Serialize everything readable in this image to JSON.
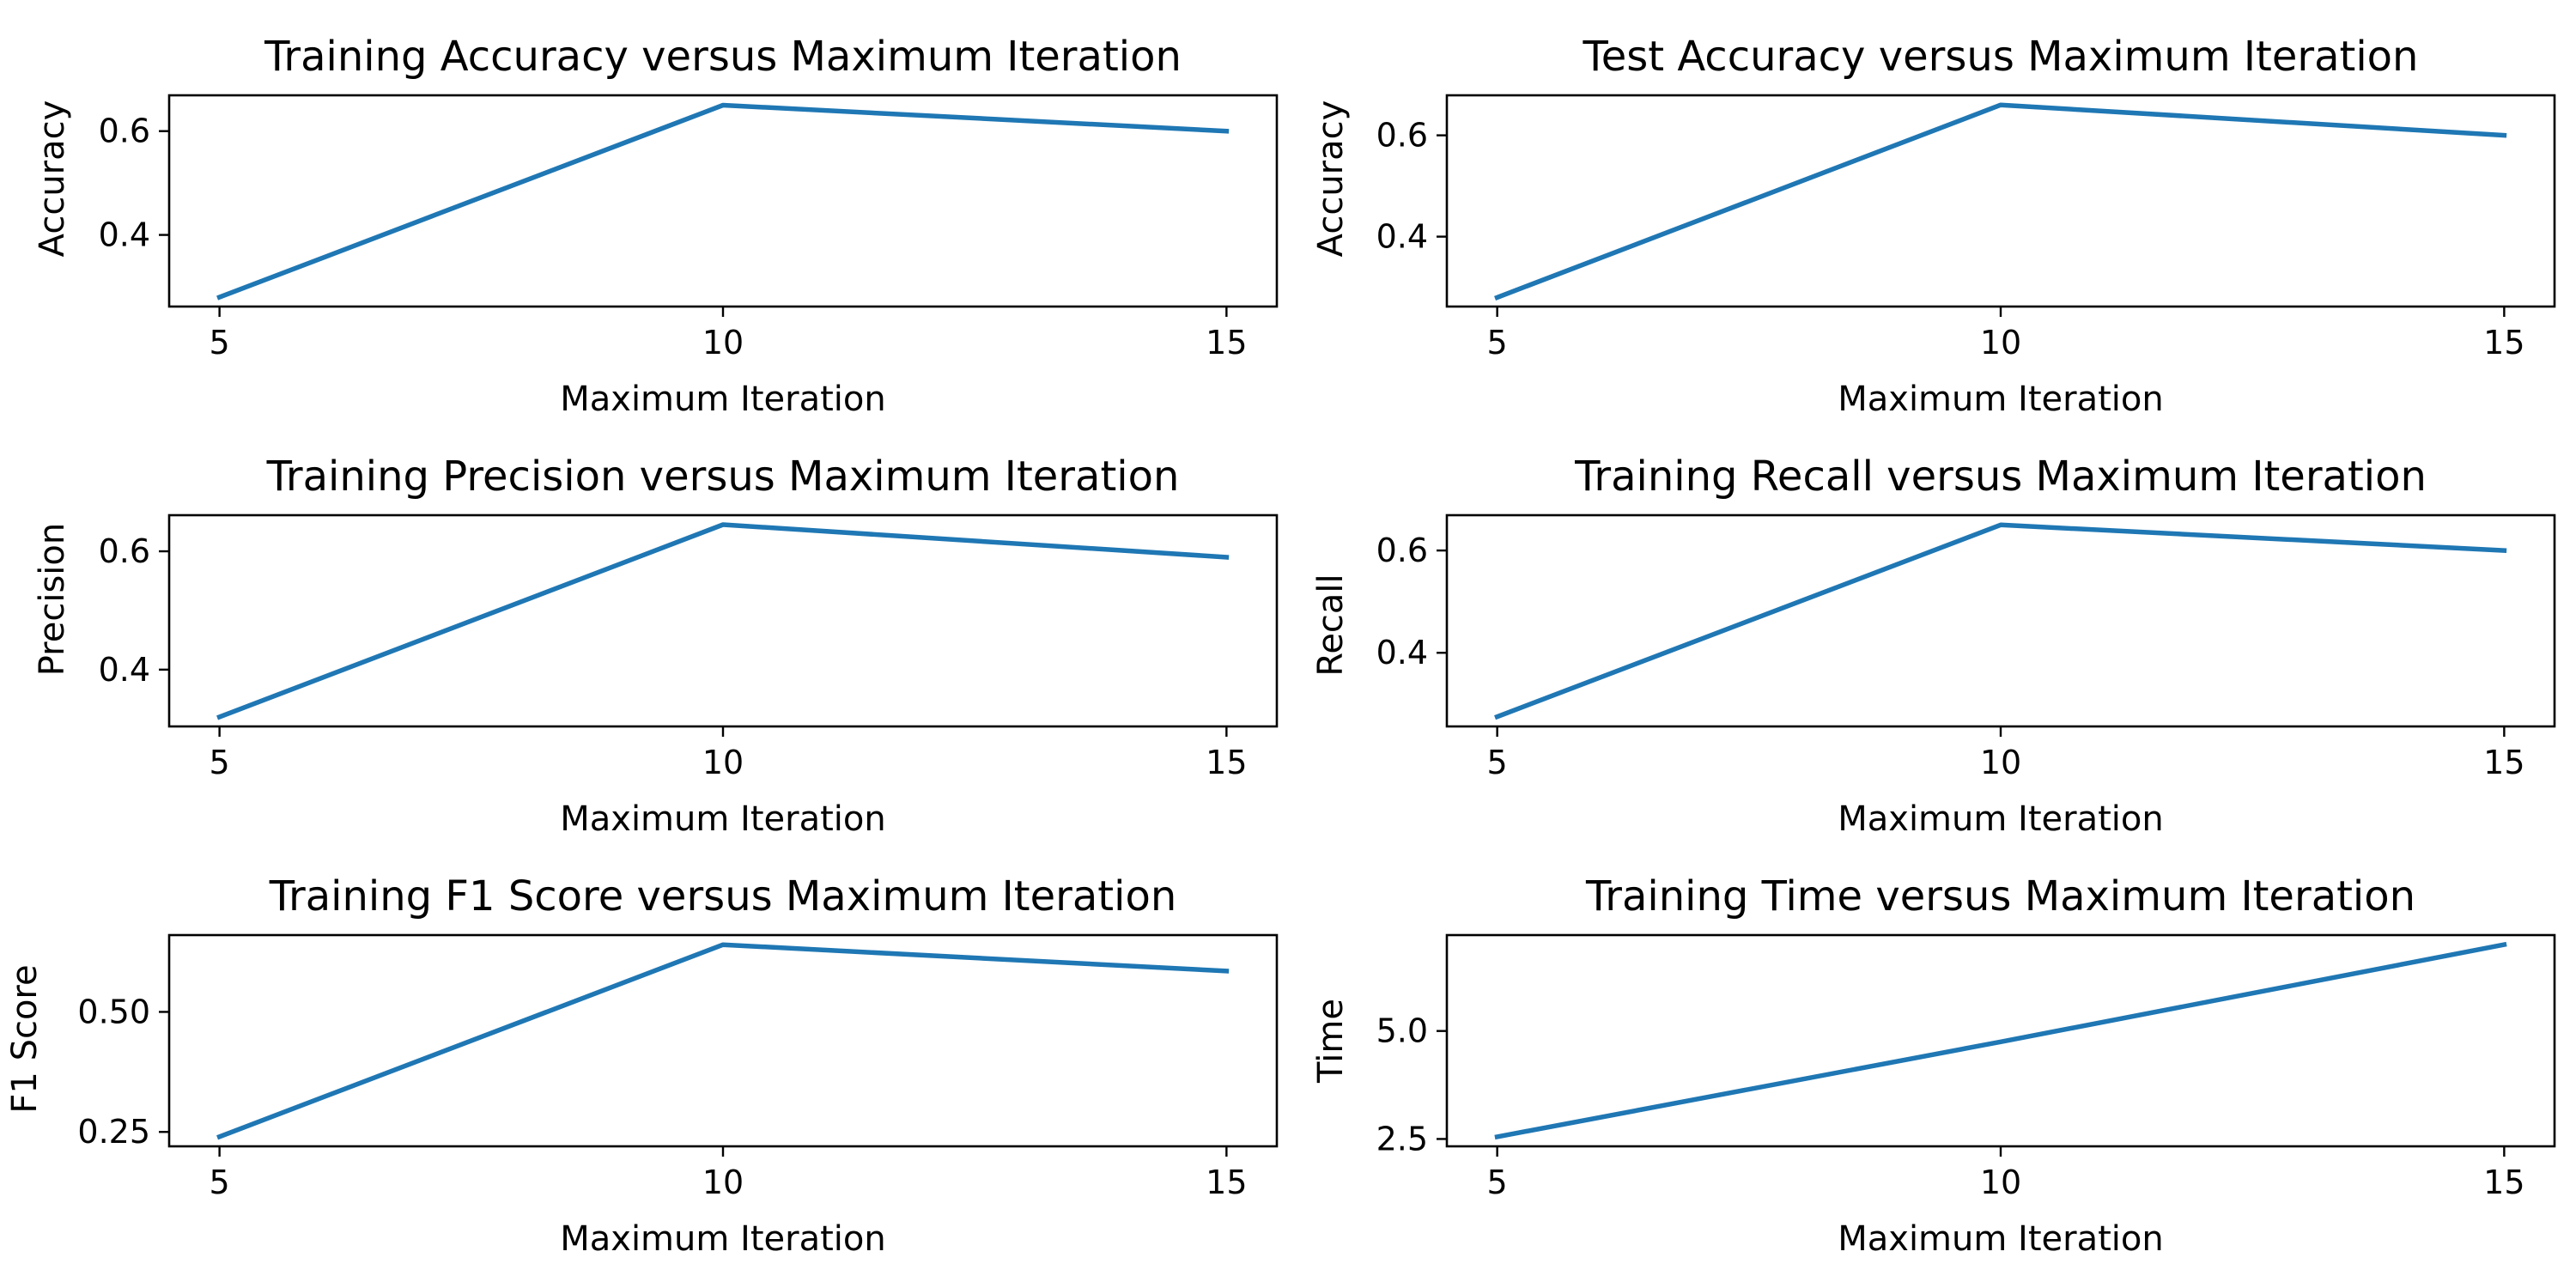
{
  "chart_data": [
    {
      "type": "line",
      "title": "Training Accuracy versus Maximum Iteration",
      "xlabel": "Maximum Iteration",
      "ylabel": "Accuracy",
      "x": [
        5,
        10,
        15
      ],
      "xticks": [
        5,
        10,
        15
      ],
      "xlim": [
        4.5,
        15.5
      ],
      "y": [
        0.28,
        0.65,
        0.6
      ],
      "yticks": [
        0.4,
        0.6
      ],
      "ylim": [
        0.262,
        0.669
      ],
      "grid": false,
      "color": "#1f77b4"
    },
    {
      "type": "line",
      "title": "Test Accuracy versus Maximum Iteration",
      "xlabel": "Maximum Iteration",
      "ylabel": "Accuracy",
      "x": [
        5,
        10,
        15
      ],
      "xticks": [
        5,
        10,
        15
      ],
      "xlim": [
        4.5,
        15.5
      ],
      "y": [
        0.28,
        0.66,
        0.6
      ],
      "yticks": [
        0.4,
        0.6
      ],
      "ylim": [
        0.262,
        0.679
      ],
      "grid": false,
      "color": "#1f77b4"
    },
    {
      "type": "line",
      "title": "Training Precision versus Maximum Iteration",
      "xlabel": "Maximum Iteration",
      "ylabel": "Precision",
      "x": [
        5,
        10,
        15
      ],
      "xticks": [
        5,
        10,
        15
      ],
      "xlim": [
        4.5,
        15.5
      ],
      "y": [
        0.32,
        0.645,
        0.59
      ],
      "yticks": [
        0.4,
        0.6
      ],
      "ylim": [
        0.304,
        0.661
      ],
      "grid": false,
      "color": "#1f77b4"
    },
    {
      "type": "line",
      "title": "Training Recall versus Maximum Iteration",
      "xlabel": "Maximum Iteration",
      "ylabel": "Recall",
      "x": [
        5,
        10,
        15
      ],
      "xticks": [
        5,
        10,
        15
      ],
      "xlim": [
        4.5,
        15.5
      ],
      "y": [
        0.275,
        0.65,
        0.6
      ],
      "yticks": [
        0.4,
        0.6
      ],
      "ylim": [
        0.256,
        0.669
      ],
      "grid": false,
      "color": "#1f77b4"
    },
    {
      "type": "line",
      "title": "Training F1 Score versus Maximum Iteration",
      "xlabel": "Maximum Iteration",
      "ylabel": "F1 Score",
      "x": [
        5,
        10,
        15
      ],
      "xticks": [
        5,
        10,
        15
      ],
      "xlim": [
        4.5,
        15.5
      ],
      "y": [
        0.24,
        0.64,
        0.585
      ],
      "yticks": [
        0.25,
        0.5
      ],
      "ylim": [
        0.22,
        0.66
      ],
      "grid": false,
      "color": "#1f77b4",
      "ytick_labels": [
        "0.25",
        "0.50"
      ]
    },
    {
      "type": "line",
      "title": "Training Time versus Maximum Iteration",
      "xlabel": "Maximum Iteration",
      "ylabel": "Time",
      "x": [
        5,
        10,
        15
      ],
      "xticks": [
        5,
        10,
        15
      ],
      "xlim": [
        4.5,
        15.5
      ],
      "y": [
        2.55,
        4.75,
        7.0
      ],
      "yticks": [
        2.5,
        5.0
      ],
      "ylim": [
        2.33,
        7.22
      ],
      "grid": false,
      "color": "#1f77b4",
      "ytick_labels": [
        "2.5",
        "5.0"
      ]
    }
  ]
}
